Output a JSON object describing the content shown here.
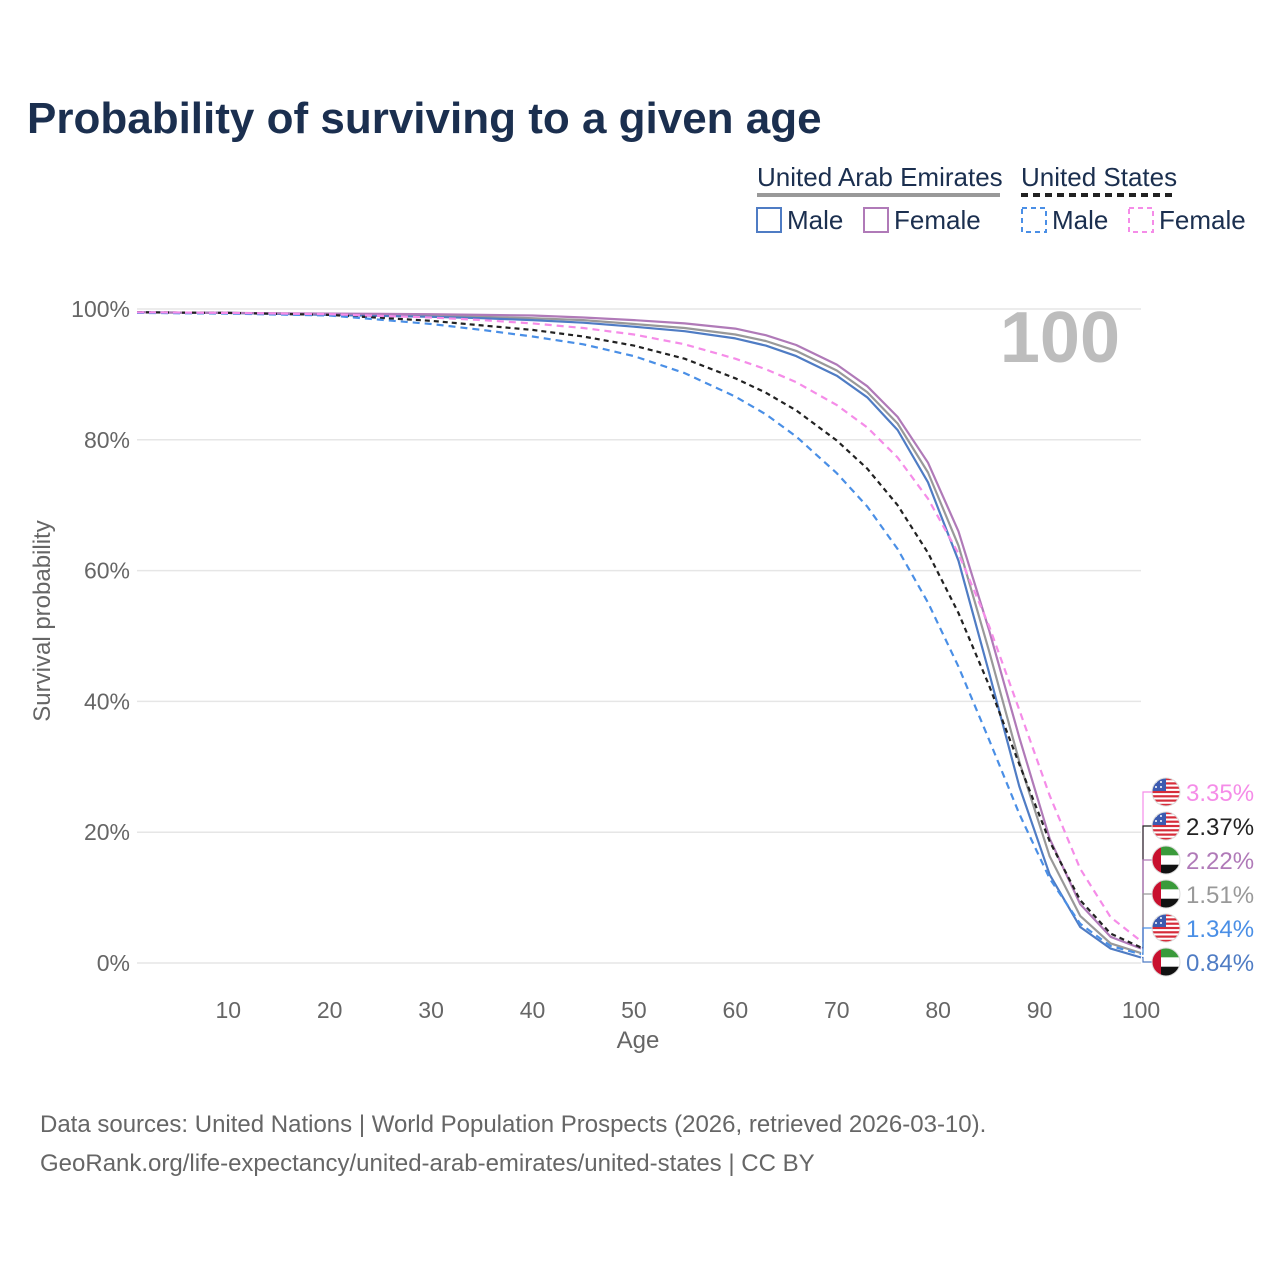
{
  "chart_data": {
    "type": "line",
    "title": "Probability of surviving to a given age",
    "xlabel": "Age",
    "ylabel": "Survival probability",
    "xlim": [
      1,
      100
    ],
    "ylim": [
      0,
      100
    ],
    "x_ticks": [
      10,
      20,
      30,
      40,
      50,
      60,
      70,
      80,
      90,
      100
    ],
    "y_ticks": [
      0,
      20,
      40,
      60,
      80,
      100
    ],
    "y_tick_labels": [
      "0%",
      "20%",
      "40%",
      "60%",
      "80%",
      "100%"
    ],
    "year_label": "100",
    "legend": {
      "groups": [
        {
          "name": "United Arab Emirates",
          "items": [
            "Male",
            "Female"
          ],
          "style": "solid"
        },
        {
          "name": "United States",
          "items": [
            "Male",
            "Female"
          ],
          "style": "dashed"
        }
      ]
    },
    "x": [
      1,
      10,
      20,
      30,
      35,
      40,
      45,
      50,
      55,
      60,
      63,
      66,
      70,
      73,
      76,
      79,
      82,
      85,
      88,
      91,
      94,
      97,
      100
    ],
    "series": [
      {
        "name": "United Arab Emirates Male",
        "country": "United Arab Emirates",
        "sex": "Male",
        "color": "#4f7cc4",
        "dash": "none",
        "values": [
          99.5,
          99.4,
          99.1,
          98.8,
          98.6,
          98.3,
          97.9,
          97.3,
          96.6,
          95.5,
          94.4,
          92.8,
          89.8,
          86.5,
          81.5,
          73.5,
          61.5,
          44.5,
          27.0,
          13.5,
          5.5,
          2.2,
          0.84
        ],
        "end_label": "0.84%"
      },
      {
        "name": "United Arab Emirates Female",
        "country": "United Arab Emirates",
        "sex": "Female",
        "color": "#b07ab8",
        "dash": "none",
        "values": [
          99.5,
          99.4,
          99.3,
          99.2,
          99.1,
          99.0,
          98.7,
          98.3,
          97.8,
          97.0,
          96.0,
          94.5,
          91.5,
          88.2,
          83.5,
          76.5,
          66.0,
          51.0,
          34.5,
          19.0,
          9.0,
          4.0,
          2.22
        ],
        "end_label": "2.22%"
      },
      {
        "name": "United Arab Emirates Both",
        "country": "United Arab Emirates",
        "sex": "Both",
        "color": "#999999",
        "dash": "none",
        "values": [
          99.5,
          99.4,
          99.2,
          99.0,
          98.8,
          98.6,
          98.3,
          97.7,
          97.1,
          96.1,
          95.1,
          93.6,
          90.6,
          87.3,
          82.5,
          75.0,
          63.8,
          47.8,
          30.8,
          16.3,
          7.2,
          3.0,
          1.51
        ],
        "end_label": "1.51%"
      },
      {
        "name": "United States Male",
        "country": "United States",
        "sex": "Male",
        "color": "#4a8fe6",
        "dash": "7,5",
        "values": [
          99.4,
          99.3,
          99.0,
          97.7,
          96.8,
          95.8,
          94.6,
          92.8,
          90.2,
          86.6,
          83.9,
          80.5,
          74.9,
          69.8,
          63.3,
          55.1,
          45.3,
          34.2,
          22.8,
          12.9,
          6.0,
          2.6,
          1.34
        ],
        "end_label": "1.34%"
      },
      {
        "name": "United States Female",
        "country": "United States",
        "sex": "Female",
        "color": "#f58ce8",
        "dash": "7,5",
        "values": [
          99.5,
          99.4,
          99.2,
          98.7,
          98.3,
          97.8,
          97.1,
          96.1,
          94.6,
          92.4,
          90.8,
          88.8,
          85.3,
          81.9,
          77.3,
          71.0,
          62.6,
          51.6,
          38.7,
          25.6,
          14.4,
          7.0,
          3.35
        ],
        "end_label": "3.35%"
      },
      {
        "name": "United States Both",
        "country": "United States",
        "sex": "Both",
        "color": "#222222",
        "dash": "5,4",
        "values": [
          99.5,
          99.4,
          99.1,
          98.2,
          97.5,
          96.8,
          95.8,
          94.4,
          92.4,
          89.4,
          87.2,
          84.5,
          79.9,
          75.6,
          70.0,
          62.7,
          53.5,
          42.5,
          30.4,
          18.6,
          9.6,
          4.5,
          2.37
        ],
        "end_label": "2.37%"
      }
    ],
    "end_labels_order": [
      "3.35%",
      "2.37%",
      "2.22%",
      "1.51%",
      "1.34%",
      "0.84%"
    ]
  },
  "source": {
    "line1": "Data sources: United Nations | World Population Prospects (2026, retrieved 2026-03-10).",
    "line2": "GeoRank.org/life-expectancy/united-arab-emirates/united-states | CC BY"
  }
}
